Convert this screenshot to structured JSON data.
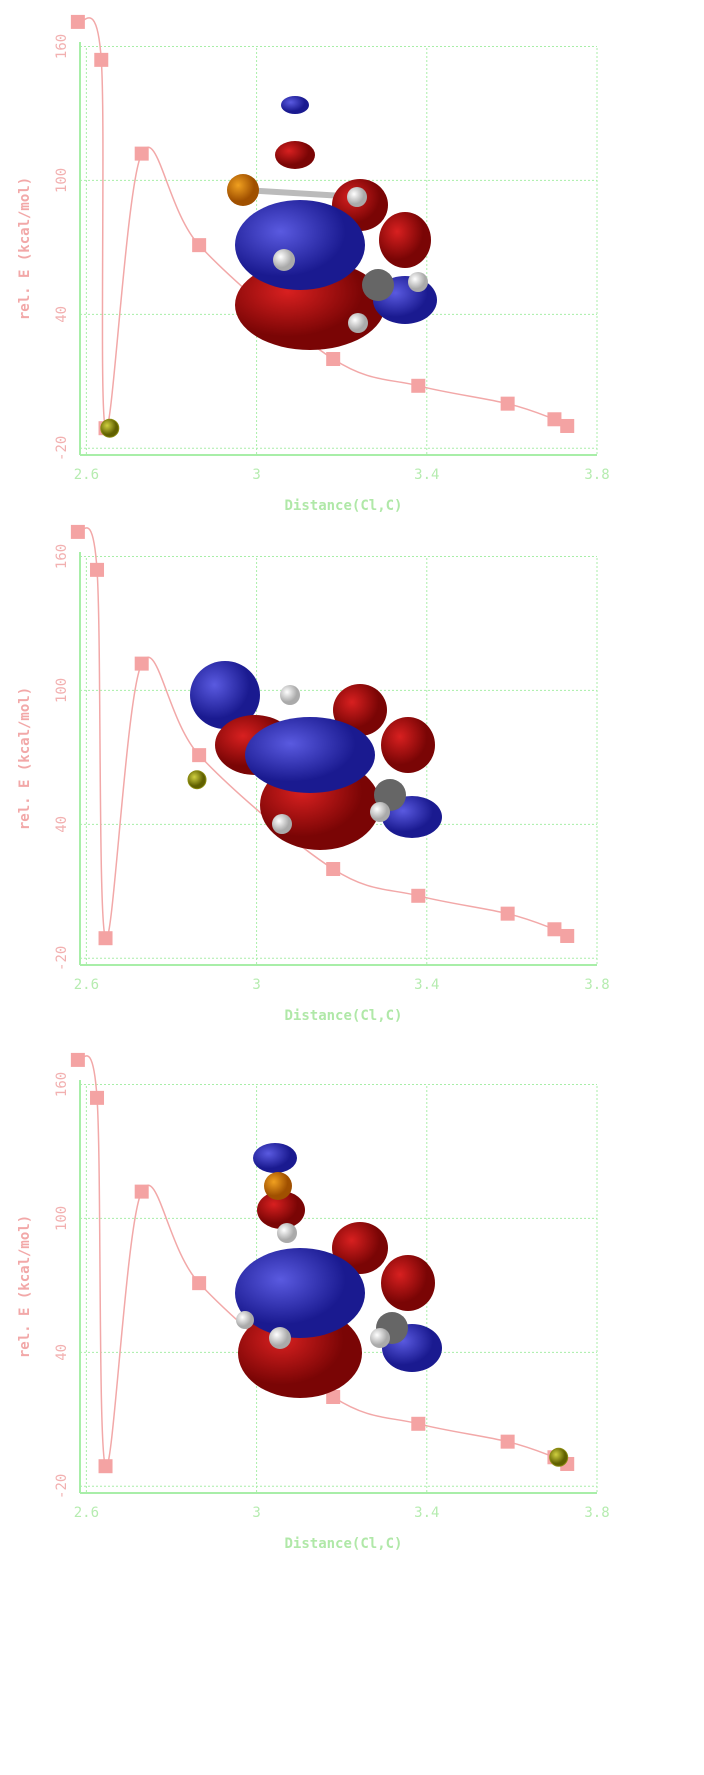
{
  "chart_data": [
    {
      "type": "scatter",
      "xlabel": "Distance(Cl,C)",
      "ylabel": "rel. E (kcal/mol)",
      "x": [
        2.58,
        2.635,
        2.645,
        2.73,
        2.865,
        3.18,
        3.38,
        3.59,
        3.7,
        3.73
      ],
      "y": [
        171,
        154,
        -11,
        112,
        71,
        20,
        8,
        0,
        -7,
        -10
      ],
      "highlight": {
        "x": 2.655,
        "y": -11
      },
      "color": "#f4a3a3",
      "line_color": "#f2a8a8",
      "highlight_color": "#8a8a10",
      "xlim": [
        2.585,
        3.8
      ],
      "ylim": [
        -23,
        162
      ],
      "xticks": [
        2.6,
        3,
        3.4,
        3.8
      ],
      "yticks": [
        -20,
        40,
        100,
        160
      ],
      "grid": true
    },
    {
      "type": "scatter",
      "xlabel": "Distance(Cl,C)",
      "ylabel": "rel. E (kcal/mol)",
      "x": [
        2.58,
        2.625,
        2.645,
        2.73,
        2.865,
        3.18,
        3.38,
        3.59,
        3.7,
        3.73
      ],
      "y": [
        171,
        154,
        -11,
        112,
        71,
        20,
        8,
        0,
        -7,
        -10
      ],
      "highlight": {
        "x": 2.86,
        "y": 60
      },
      "color": "#f4a3a3",
      "line_color": "#f2a8a8",
      "highlight_color": "#8a8a10",
      "xlim": [
        2.585,
        3.8
      ],
      "ylim": [
        -23,
        162
      ],
      "xticks": [
        2.6,
        3,
        3.4,
        3.8
      ],
      "yticks": [
        -20,
        40,
        100,
        160
      ],
      "grid": true
    },
    {
      "type": "scatter",
      "xlabel": "Distance(Cl,C)",
      "ylabel": "rel. E (kcal/mol)",
      "x": [
        2.58,
        2.625,
        2.645,
        2.73,
        2.865,
        3.18,
        3.38,
        3.59,
        3.7,
        3.73
      ],
      "y": [
        171,
        154,
        -11,
        112,
        71,
        20,
        8,
        0,
        -7,
        -10
      ],
      "highlight": {
        "x": 3.71,
        "y": -7
      },
      "color": "#f4a3a3",
      "line_color": "#f2a8a8",
      "highlight_color": "#8a8a10",
      "xlim": [
        2.585,
        3.8
      ],
      "ylim": [
        -23,
        162
      ],
      "xticks": [
        2.6,
        3,
        3.4,
        3.8
      ],
      "yticks": [
        -20,
        40,
        100,
        160
      ],
      "grid": true
    }
  ]
}
